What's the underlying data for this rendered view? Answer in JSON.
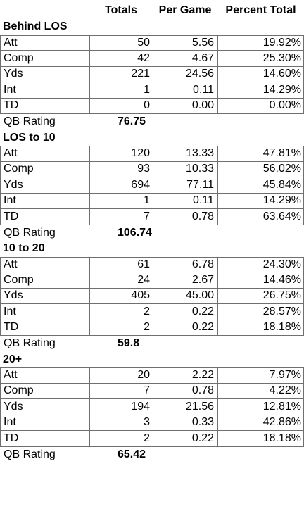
{
  "header": {
    "totals": "Totals",
    "per_game": "Per Game",
    "percent_total": "Percent Total"
  },
  "sections": [
    {
      "title": "Behind LOS",
      "rows": [
        {
          "label": "Att",
          "totals": "50",
          "per_game": "5.56",
          "percent": "19.92%"
        },
        {
          "label": "Comp",
          "totals": "42",
          "per_game": "4.67",
          "percent": "25.30%"
        },
        {
          "label": "Yds",
          "totals": "221",
          "per_game": "24.56",
          "percent": "14.60%"
        },
        {
          "label": "Int",
          "totals": "1",
          "per_game": "0.11",
          "percent": "14.29%"
        },
        {
          "label": "TD",
          "totals": "0",
          "per_game": "0.00",
          "percent": "0.00%"
        }
      ],
      "rating_label": "QB Rating",
      "rating_value": "76.75"
    },
    {
      "title": "LOS to 10",
      "rows": [
        {
          "label": "Att",
          "totals": "120",
          "per_game": "13.33",
          "percent": "47.81%"
        },
        {
          "label": "Comp",
          "totals": "93",
          "per_game": "10.33",
          "percent": "56.02%"
        },
        {
          "label": "Yds",
          "totals": "694",
          "per_game": "77.11",
          "percent": "45.84%"
        },
        {
          "label": "Int",
          "totals": "1",
          "per_game": "0.11",
          "percent": "14.29%"
        },
        {
          "label": "TD",
          "totals": "7",
          "per_game": "0.78",
          "percent": "63.64%"
        }
      ],
      "rating_label": "QB Rating",
      "rating_value": "106.74"
    },
    {
      "title": "10 to 20",
      "rows": [
        {
          "label": "Att",
          "totals": "61",
          "per_game": "6.78",
          "percent": "24.30%"
        },
        {
          "label": "Comp",
          "totals": "24",
          "per_game": "2.67",
          "percent": "14.46%"
        },
        {
          "label": "Yds",
          "totals": "405",
          "per_game": "45.00",
          "percent": "26.75%"
        },
        {
          "label": "Int",
          "totals": "2",
          "per_game": "0.22",
          "percent": "28.57%"
        },
        {
          "label": "TD",
          "totals": "2",
          "per_game": "0.22",
          "percent": "18.18%"
        }
      ],
      "rating_label": "QB Rating",
      "rating_value": "59.8"
    },
    {
      "title": "20+",
      "rows": [
        {
          "label": "Att",
          "totals": "20",
          "per_game": "2.22",
          "percent": "7.97%"
        },
        {
          "label": "Comp",
          "totals": "7",
          "per_game": "0.78",
          "percent": "4.22%"
        },
        {
          "label": "Yds",
          "totals": "194",
          "per_game": "21.56",
          "percent": "12.81%"
        },
        {
          "label": "Int",
          "totals": "3",
          "per_game": "0.33",
          "percent": "42.86%"
        },
        {
          "label": "TD",
          "totals": "2",
          "per_game": "0.22",
          "percent": "18.18%"
        }
      ],
      "rating_label": "QB Rating",
      "rating_value": "65.42"
    }
  ]
}
